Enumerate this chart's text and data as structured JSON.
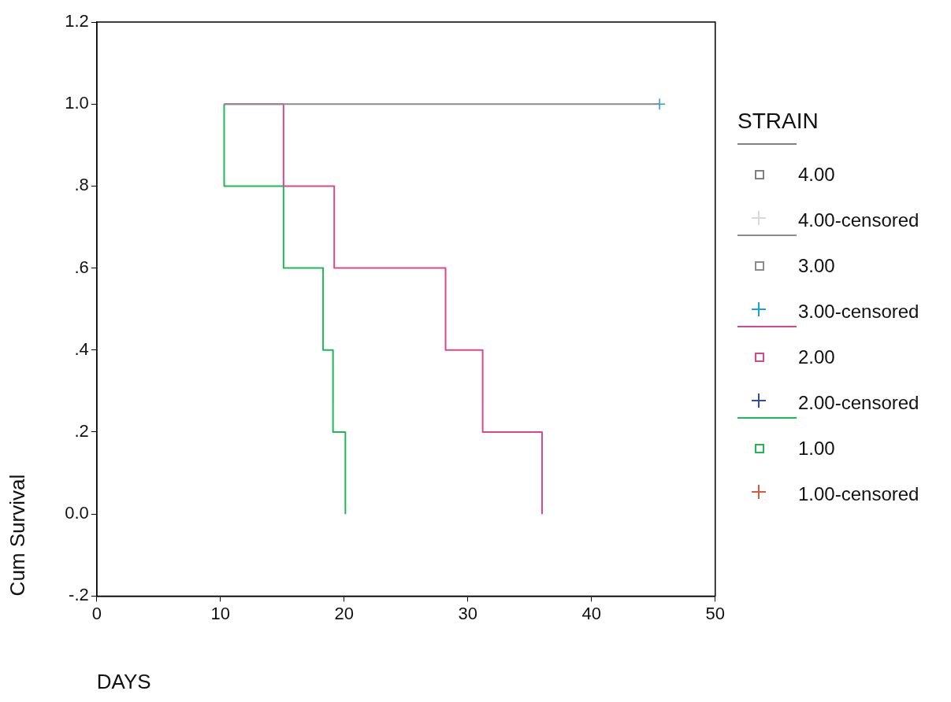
{
  "chart_data": {
    "type": "step",
    "xlabel": "DAYS",
    "ylabel": "Cum Survival",
    "legend_title": "STRAIN",
    "legend": "right",
    "grid": false,
    "xlim": [
      0,
      50
    ],
    "xticks": [
      0,
      10,
      20,
      30,
      40,
      50
    ],
    "ylim": [
      -0.2,
      1.2
    ],
    "yticks": [
      {
        "value": -0.2,
        "label": "-.2"
      },
      {
        "value": 0,
        "label": "0.0"
      },
      {
        "value": 0.2,
        "label": ".2"
      },
      {
        "value": 0.4,
        "label": ".4"
      },
      {
        "value": 0.6,
        "label": ".6"
      },
      {
        "value": 0.8,
        "label": ".8"
      },
      {
        "value": 1.0,
        "label": "1.0"
      },
      {
        "value": 1.2,
        "label": "1.2"
      }
    ],
    "series": [
      {
        "name": "4.00",
        "color": "#808080"
      },
      {
        "name": "4.00-censored",
        "type": "scatter",
        "marker": "cross",
        "color": "#d9d9d9"
      },
      {
        "name": "3.00",
        "color": "#8c8c8c",
        "x": [
          10.3,
          45.5
        ],
        "values": [
          1.0,
          1.0
        ]
      },
      {
        "name": "3.00-censored",
        "type": "scatter",
        "marker": "cross",
        "color": "#1aa3d9",
        "x": [
          45.5
        ],
        "values": [
          1.0
        ]
      },
      {
        "name": "2.00",
        "color": "#d9488a",
        "x": [
          10.3,
          15.1,
          19.2,
          28.2,
          31.2,
          36.0
        ],
        "values": [
          1.0,
          0.8,
          0.6,
          0.4,
          0.2,
          0.0
        ]
      },
      {
        "name": "2.00-censored",
        "type": "scatter",
        "marker": "cross",
        "color": "#2e4fa3"
      },
      {
        "name": "1.00",
        "color": "#1db954",
        "x": [
          10.3,
          10.3,
          15.1,
          18.3,
          19.1,
          20.1
        ],
        "values": [
          1.0,
          0.8,
          0.6,
          0.4,
          0.2,
          0.0
        ]
      },
      {
        "name": "1.00-censored",
        "type": "scatter",
        "marker": "cross",
        "color": "#d9583f"
      }
    ]
  }
}
